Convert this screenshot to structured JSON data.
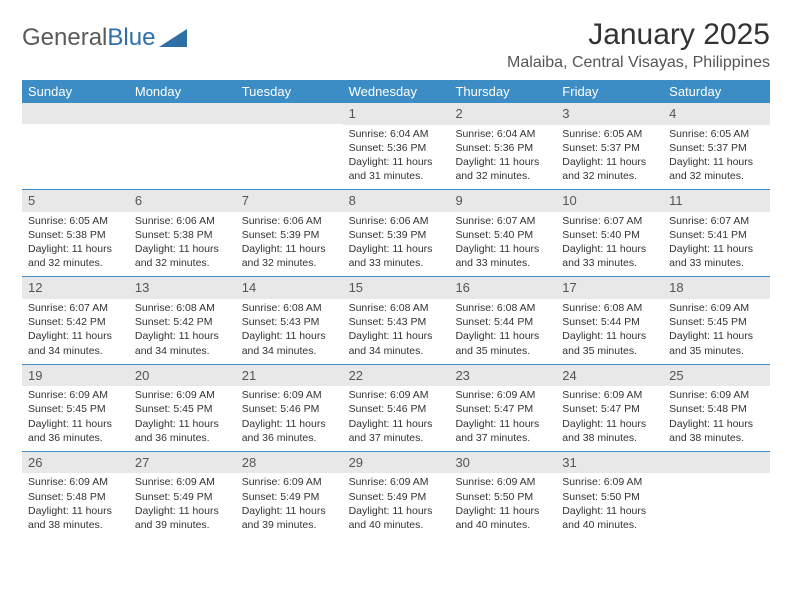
{
  "brand": {
    "name1": "General",
    "name2": "Blue"
  },
  "title": "January 2025",
  "location": "Malaiba, Central Visayas, Philippines",
  "colors": {
    "header_bg": "#3c8dc5",
    "header_fg": "#ffffff",
    "daynum_bg": "#e8e8e8",
    "row_border": "#3c8dc5",
    "text": "#333333",
    "brand_gray": "#5a5a5a",
    "brand_blue": "#2f6fa8",
    "background": "#ffffff"
  },
  "day_headers": [
    "Sunday",
    "Monday",
    "Tuesday",
    "Wednesday",
    "Thursday",
    "Friday",
    "Saturday"
  ],
  "weeks": [
    [
      {
        "n": "",
        "sunrise": "",
        "sunset": "",
        "daylight": ""
      },
      {
        "n": "",
        "sunrise": "",
        "sunset": "",
        "daylight": ""
      },
      {
        "n": "",
        "sunrise": "",
        "sunset": "",
        "daylight": ""
      },
      {
        "n": "1",
        "sunrise": "Sunrise: 6:04 AM",
        "sunset": "Sunset: 5:36 PM",
        "daylight": "Daylight: 11 hours and 31 minutes."
      },
      {
        "n": "2",
        "sunrise": "Sunrise: 6:04 AM",
        "sunset": "Sunset: 5:36 PM",
        "daylight": "Daylight: 11 hours and 32 minutes."
      },
      {
        "n": "3",
        "sunrise": "Sunrise: 6:05 AM",
        "sunset": "Sunset: 5:37 PM",
        "daylight": "Daylight: 11 hours and 32 minutes."
      },
      {
        "n": "4",
        "sunrise": "Sunrise: 6:05 AM",
        "sunset": "Sunset: 5:37 PM",
        "daylight": "Daylight: 11 hours and 32 minutes."
      }
    ],
    [
      {
        "n": "5",
        "sunrise": "Sunrise: 6:05 AM",
        "sunset": "Sunset: 5:38 PM",
        "daylight": "Daylight: 11 hours and 32 minutes."
      },
      {
        "n": "6",
        "sunrise": "Sunrise: 6:06 AM",
        "sunset": "Sunset: 5:38 PM",
        "daylight": "Daylight: 11 hours and 32 minutes."
      },
      {
        "n": "7",
        "sunrise": "Sunrise: 6:06 AM",
        "sunset": "Sunset: 5:39 PM",
        "daylight": "Daylight: 11 hours and 32 minutes."
      },
      {
        "n": "8",
        "sunrise": "Sunrise: 6:06 AM",
        "sunset": "Sunset: 5:39 PM",
        "daylight": "Daylight: 11 hours and 33 minutes."
      },
      {
        "n": "9",
        "sunrise": "Sunrise: 6:07 AM",
        "sunset": "Sunset: 5:40 PM",
        "daylight": "Daylight: 11 hours and 33 minutes."
      },
      {
        "n": "10",
        "sunrise": "Sunrise: 6:07 AM",
        "sunset": "Sunset: 5:40 PM",
        "daylight": "Daylight: 11 hours and 33 minutes."
      },
      {
        "n": "11",
        "sunrise": "Sunrise: 6:07 AM",
        "sunset": "Sunset: 5:41 PM",
        "daylight": "Daylight: 11 hours and 33 minutes."
      }
    ],
    [
      {
        "n": "12",
        "sunrise": "Sunrise: 6:07 AM",
        "sunset": "Sunset: 5:42 PM",
        "daylight": "Daylight: 11 hours and 34 minutes."
      },
      {
        "n": "13",
        "sunrise": "Sunrise: 6:08 AM",
        "sunset": "Sunset: 5:42 PM",
        "daylight": "Daylight: 11 hours and 34 minutes."
      },
      {
        "n": "14",
        "sunrise": "Sunrise: 6:08 AM",
        "sunset": "Sunset: 5:43 PM",
        "daylight": "Daylight: 11 hours and 34 minutes."
      },
      {
        "n": "15",
        "sunrise": "Sunrise: 6:08 AM",
        "sunset": "Sunset: 5:43 PM",
        "daylight": "Daylight: 11 hours and 34 minutes."
      },
      {
        "n": "16",
        "sunrise": "Sunrise: 6:08 AM",
        "sunset": "Sunset: 5:44 PM",
        "daylight": "Daylight: 11 hours and 35 minutes."
      },
      {
        "n": "17",
        "sunrise": "Sunrise: 6:08 AM",
        "sunset": "Sunset: 5:44 PM",
        "daylight": "Daylight: 11 hours and 35 minutes."
      },
      {
        "n": "18",
        "sunrise": "Sunrise: 6:09 AM",
        "sunset": "Sunset: 5:45 PM",
        "daylight": "Daylight: 11 hours and 35 minutes."
      }
    ],
    [
      {
        "n": "19",
        "sunrise": "Sunrise: 6:09 AM",
        "sunset": "Sunset: 5:45 PM",
        "daylight": "Daylight: 11 hours and 36 minutes."
      },
      {
        "n": "20",
        "sunrise": "Sunrise: 6:09 AM",
        "sunset": "Sunset: 5:45 PM",
        "daylight": "Daylight: 11 hours and 36 minutes."
      },
      {
        "n": "21",
        "sunrise": "Sunrise: 6:09 AM",
        "sunset": "Sunset: 5:46 PM",
        "daylight": "Daylight: 11 hours and 36 minutes."
      },
      {
        "n": "22",
        "sunrise": "Sunrise: 6:09 AM",
        "sunset": "Sunset: 5:46 PM",
        "daylight": "Daylight: 11 hours and 37 minutes."
      },
      {
        "n": "23",
        "sunrise": "Sunrise: 6:09 AM",
        "sunset": "Sunset: 5:47 PM",
        "daylight": "Daylight: 11 hours and 37 minutes."
      },
      {
        "n": "24",
        "sunrise": "Sunrise: 6:09 AM",
        "sunset": "Sunset: 5:47 PM",
        "daylight": "Daylight: 11 hours and 38 minutes."
      },
      {
        "n": "25",
        "sunrise": "Sunrise: 6:09 AM",
        "sunset": "Sunset: 5:48 PM",
        "daylight": "Daylight: 11 hours and 38 minutes."
      }
    ],
    [
      {
        "n": "26",
        "sunrise": "Sunrise: 6:09 AM",
        "sunset": "Sunset: 5:48 PM",
        "daylight": "Daylight: 11 hours and 38 minutes."
      },
      {
        "n": "27",
        "sunrise": "Sunrise: 6:09 AM",
        "sunset": "Sunset: 5:49 PM",
        "daylight": "Daylight: 11 hours and 39 minutes."
      },
      {
        "n": "28",
        "sunrise": "Sunrise: 6:09 AM",
        "sunset": "Sunset: 5:49 PM",
        "daylight": "Daylight: 11 hours and 39 minutes."
      },
      {
        "n": "29",
        "sunrise": "Sunrise: 6:09 AM",
        "sunset": "Sunset: 5:49 PM",
        "daylight": "Daylight: 11 hours and 40 minutes."
      },
      {
        "n": "30",
        "sunrise": "Sunrise: 6:09 AM",
        "sunset": "Sunset: 5:50 PM",
        "daylight": "Daylight: 11 hours and 40 minutes."
      },
      {
        "n": "31",
        "sunrise": "Sunrise: 6:09 AM",
        "sunset": "Sunset: 5:50 PM",
        "daylight": "Daylight: 11 hours and 40 minutes."
      },
      {
        "n": "",
        "sunrise": "",
        "sunset": "",
        "daylight": ""
      }
    ]
  ]
}
